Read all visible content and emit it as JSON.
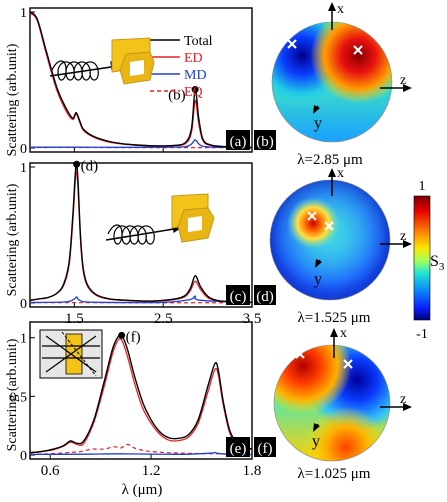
{
  "colors": {
    "total": "#000000",
    "ed": "#e8202a",
    "md": "#1d3fd6",
    "eq": "#e8202a",
    "gold": "#f2c318",
    "gold_dark": "#c9961a"
  },
  "y_axis_label": "Scattering (arb.unit)",
  "legend": [
    "Total",
    "ED",
    "MD",
    "EQ"
  ],
  "panel_tags": {
    "a": "(a)",
    "b": "(b)",
    "c": "(c)",
    "d": "(d)",
    "e": "(e)",
    "f": "(f)"
  },
  "point_labels": {
    "a": "(b)",
    "c": "(d)",
    "e": "(f)"
  },
  "sphere_axes": {
    "x": "x",
    "y": "y",
    "z": "z"
  },
  "sphere_captions": {
    "b": "λ=2.85 μm",
    "d": "λ=1.525 μm",
    "f": "λ=1.025 μm"
  },
  "colorbar": {
    "max_label": "1",
    "min_label": "-1",
    "symbol": "S",
    "subscript": "3"
  },
  "chart_data": [
    {
      "id": "a",
      "type": "line",
      "xlim": [
        1.0,
        3.5
      ],
      "ylim": [
        0,
        1
      ],
      "xticks": [
        1.5,
        2.5,
        3.5
      ],
      "xtick_labels": [],
      "yticks": [
        0,
        1
      ],
      "ytick_labels": [
        "0",
        "1"
      ],
      "series": [
        {
          "name": "Total",
          "x": [
            1.0,
            1.08,
            1.18,
            1.3,
            1.4,
            1.48,
            1.52,
            1.56,
            1.6,
            1.7,
            1.85,
            2.0,
            2.2,
            2.4,
            2.6,
            2.75,
            2.82,
            2.86,
            2.9,
            2.95,
            3.05,
            3.2,
            3.35,
            3.5
          ],
          "y": [
            1.0,
            0.95,
            0.72,
            0.45,
            0.3,
            0.22,
            0.26,
            0.2,
            0.14,
            0.09,
            0.055,
            0.035,
            0.022,
            0.016,
            0.018,
            0.04,
            0.15,
            0.43,
            0.22,
            0.06,
            0.02,
            0.01,
            0.006,
            0.004
          ]
        },
        {
          "name": "ED",
          "x": [
            1.0,
            1.08,
            1.18,
            1.3,
            1.4,
            1.48,
            1.52,
            1.56,
            1.6,
            1.7,
            1.85,
            2.0,
            2.2,
            2.4,
            2.6,
            2.75,
            2.82,
            2.86,
            2.9,
            2.95,
            3.05,
            3.2,
            3.35,
            3.5
          ],
          "y": [
            0.99,
            0.94,
            0.7,
            0.43,
            0.28,
            0.21,
            0.25,
            0.19,
            0.13,
            0.085,
            0.05,
            0.032,
            0.02,
            0.014,
            0.016,
            0.032,
            0.12,
            0.35,
            0.18,
            0.05,
            0.018,
            0.009,
            0.005,
            0.003
          ]
        },
        {
          "name": "MD",
          "x": [
            1.0,
            1.5,
            2.0,
            2.5,
            2.75,
            2.82,
            2.86,
            2.9,
            2.95,
            3.1,
            3.5
          ],
          "y": [
            0.006,
            0.006,
            0.005,
            0.006,
            0.01,
            0.03,
            0.06,
            0.03,
            0.012,
            0.005,
            0.003
          ]
        },
        {
          "name": "EQ",
          "x": [
            1.0,
            1.5,
            2.0,
            2.5,
            3.0,
            3.5
          ],
          "y": [
            0.004,
            0.004,
            0.003,
            0.003,
            0.003,
            0.002
          ]
        }
      ],
      "marker": {
        "x": 2.86,
        "y": 0.43,
        "label": "(b)"
      }
    },
    {
      "id": "c",
      "type": "line",
      "xlim": [
        1.0,
        3.5
      ],
      "ylim": [
        0,
        1
      ],
      "xticks": [
        1.5,
        2.5,
        3.5
      ],
      "xtick_labels": [
        "1.5",
        "2.5",
        "3.5"
      ],
      "yticks": [
        0,
        1
      ],
      "ytick_labels": [
        "0",
        "1"
      ],
      "series": [
        {
          "name": "Total",
          "x": [
            1.0,
            1.1,
            1.2,
            1.3,
            1.38,
            1.44,
            1.48,
            1.51,
            1.525,
            1.54,
            1.57,
            1.6,
            1.65,
            1.75,
            1.9,
            2.1,
            2.4,
            2.7,
            2.8,
            2.86,
            2.92,
            3.0,
            3.1,
            3.25,
            3.5
          ],
          "y": [
            0.02,
            0.03,
            0.04,
            0.07,
            0.14,
            0.3,
            0.62,
            0.95,
            1.02,
            0.9,
            0.48,
            0.25,
            0.13,
            0.06,
            0.03,
            0.02,
            0.015,
            0.04,
            0.1,
            0.2,
            0.12,
            0.05,
            0.02,
            0.01,
            0.006
          ]
        },
        {
          "name": "ED",
          "x": [
            1.0,
            1.1,
            1.2,
            1.3,
            1.38,
            1.44,
            1.48,
            1.51,
            1.525,
            1.54,
            1.57,
            1.6,
            1.65,
            1.75,
            1.9,
            2.1,
            2.4,
            2.7,
            2.8,
            2.86,
            2.92,
            3.0,
            3.1,
            3.25,
            3.5
          ],
          "y": [
            0.02,
            0.03,
            0.04,
            0.07,
            0.13,
            0.28,
            0.58,
            0.9,
            0.96,
            0.85,
            0.45,
            0.23,
            0.12,
            0.055,
            0.028,
            0.018,
            0.013,
            0.035,
            0.085,
            0.16,
            0.1,
            0.04,
            0.018,
            0.009,
            0.005
          ]
        },
        {
          "name": "MD",
          "x": [
            1.0,
            1.4,
            1.5,
            1.525,
            1.56,
            1.7,
            2.5,
            2.8,
            2.86,
            2.92,
            3.5
          ],
          "y": [
            0.004,
            0.008,
            0.03,
            0.045,
            0.02,
            0.006,
            0.005,
            0.025,
            0.05,
            0.02,
            0.004
          ]
        },
        {
          "name": "EQ",
          "x": [
            1.0,
            2.0,
            3.5
          ],
          "y": [
            0.003,
            0.002,
            0.002
          ]
        }
      ],
      "marker": {
        "x": 1.525,
        "y": 1.02,
        "label": "(d)"
      }
    },
    {
      "id": "e",
      "type": "line",
      "xlabel": "λ (μm)",
      "xlim": [
        0.48,
        1.8
      ],
      "ylim": [
        0,
        1.1
      ],
      "xticks": [
        0.6,
        1.2,
        1.8
      ],
      "xtick_labels": [
        "0.6",
        "1.2",
        "1.8"
      ],
      "yticks": [
        0,
        0.5,
        1
      ],
      "ytick_labels": [
        "0",
        "0.5",
        "1"
      ],
      "series": [
        {
          "name": "Total",
          "x": [
            0.48,
            0.55,
            0.62,
            0.68,
            0.72,
            0.76,
            0.8,
            0.86,
            0.92,
            0.97,
            1.0,
            1.025,
            1.06,
            1.1,
            1.15,
            1.2,
            1.25,
            1.3,
            1.35,
            1.42,
            1.48,
            1.54,
            1.58,
            1.6,
            1.63,
            1.67,
            1.72,
            1.8
          ],
          "y": [
            0.02,
            0.03,
            0.05,
            0.08,
            0.12,
            0.1,
            0.12,
            0.3,
            0.62,
            0.9,
            1.0,
            1.02,
            0.9,
            0.68,
            0.45,
            0.3,
            0.2,
            0.15,
            0.14,
            0.17,
            0.3,
            0.6,
            0.78,
            0.72,
            0.45,
            0.2,
            0.1,
            0.05
          ]
        },
        {
          "name": "ED",
          "x": [
            0.48,
            0.55,
            0.62,
            0.68,
            0.72,
            0.76,
            0.8,
            0.86,
            0.92,
            0.97,
            1.0,
            1.025,
            1.06,
            1.1,
            1.15,
            1.2,
            1.25,
            1.3,
            1.35,
            1.42,
            1.48,
            1.54,
            1.58,
            1.6,
            1.63,
            1.67,
            1.72,
            1.8
          ],
          "y": [
            0.02,
            0.03,
            0.045,
            0.075,
            0.11,
            0.09,
            0.1,
            0.28,
            0.58,
            0.86,
            0.97,
            0.98,
            0.84,
            0.62,
            0.4,
            0.27,
            0.18,
            0.13,
            0.12,
            0.15,
            0.27,
            0.55,
            0.73,
            0.68,
            0.42,
            0.18,
            0.09,
            0.045
          ]
        },
        {
          "name": "MD",
          "x": [
            0.48,
            0.8,
            1.0,
            1.2,
            1.4,
            1.55,
            1.58,
            1.62,
            1.8
          ],
          "y": [
            0.005,
            0.007,
            0.01,
            0.008,
            0.006,
            0.015,
            0.02,
            0.01,
            0.004
          ]
        },
        {
          "name": "EQ",
          "x": [
            0.48,
            0.6,
            0.7,
            0.78,
            0.85,
            0.92,
            0.98,
            1.02,
            1.06,
            1.1,
            1.15,
            1.2,
            1.3,
            1.4,
            1.5,
            1.6,
            1.7,
            1.8
          ],
          "y": [
            0.005,
            0.01,
            0.02,
            0.03,
            0.05,
            0.05,
            0.07,
            0.06,
            0.09,
            0.06,
            0.04,
            0.03,
            0.02,
            0.015,
            0.012,
            0.01,
            0.008,
            0.005
          ]
        }
      ],
      "marker": {
        "x": 1.025,
        "y": 1.02,
        "label": "(f)"
      }
    }
  ]
}
